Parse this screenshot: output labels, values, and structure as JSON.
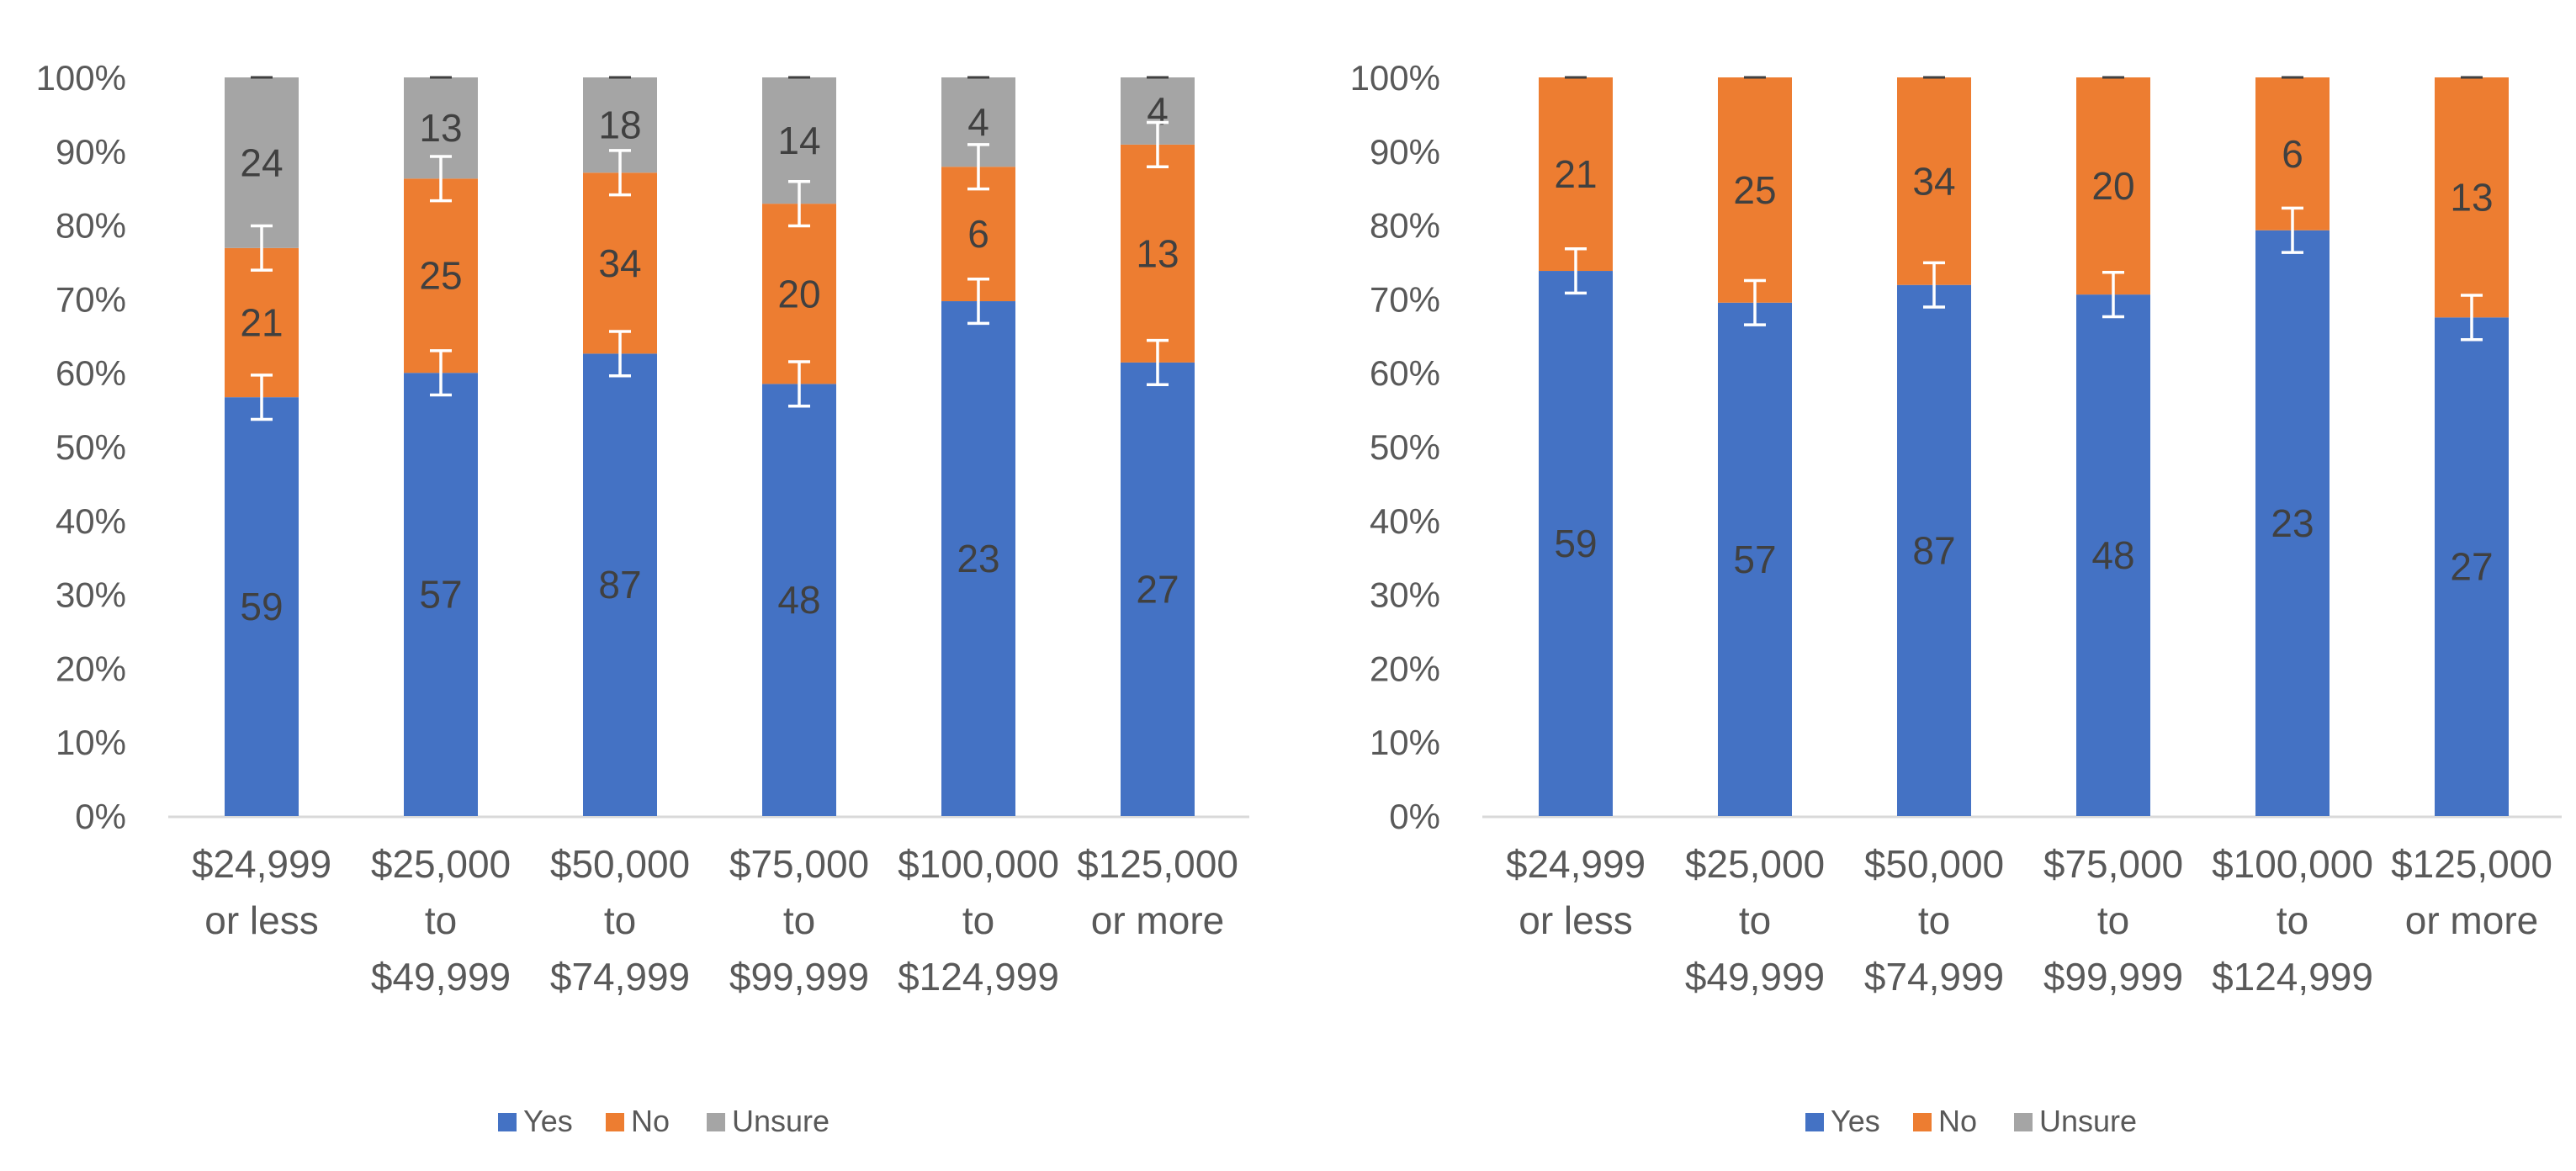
{
  "chart_data": [
    {
      "type": "bar",
      "stacked": "percent",
      "title": "",
      "xlabel": "",
      "ylabel": "",
      "ylim": [
        0,
        100
      ],
      "y_ticks": [
        "0%",
        "10%",
        "20%",
        "30%",
        "40%",
        "50%",
        "60%",
        "70%",
        "80%",
        "90%",
        "100%"
      ],
      "grid": false,
      "legend_position": "bottom",
      "categories": [
        [
          "$24,999",
          "or less"
        ],
        [
          "$25,000",
          "to",
          "$49,999"
        ],
        [
          "$50,000",
          "to",
          "$74,999"
        ],
        [
          "$75,000",
          "to",
          "$99,999"
        ],
        [
          "$100,000",
          "to",
          "$124,999"
        ],
        [
          "$125,000",
          "or more"
        ]
      ],
      "series": [
        {
          "name": "Yes",
          "color": "#4472C4",
          "counts": [
            "59",
            "57",
            "87",
            "48",
            "23",
            "27"
          ],
          "percent": [
            56.7,
            60.0,
            62.6,
            58.5,
            69.7,
            61.4
          ]
        },
        {
          "name": "No",
          "color": "#ED7D31",
          "counts": [
            "21",
            "25",
            "34",
            "20",
            "6",
            "13"
          ],
          "percent": [
            20.2,
            26.3,
            24.5,
            24.4,
            18.2,
            29.5
          ]
        },
        {
          "name": "Unsure",
          "color": "#A5A5A5",
          "counts": [
            "24",
            "13",
            "18",
            "14",
            "4",
            "4"
          ],
          "percent": [
            23.1,
            13.7,
            12.9,
            17.1,
            12.1,
            9.1
          ]
        }
      ]
    },
    {
      "type": "bar",
      "stacked": "percent",
      "title": "",
      "xlabel": "",
      "ylabel": "",
      "ylim": [
        0,
        100
      ],
      "y_ticks": [
        "0%",
        "10%",
        "20%",
        "30%",
        "40%",
        "50%",
        "60%",
        "70%",
        "80%",
        "90%",
        "100%"
      ],
      "grid": false,
      "legend_position": "bottom",
      "categories": [
        [
          "$24,999",
          "or less"
        ],
        [
          "$25,000",
          "to",
          "$49,999"
        ],
        [
          "$50,000",
          "to",
          "$74,999"
        ],
        [
          "$75,000",
          "to",
          "$99,999"
        ],
        [
          "$100,000",
          "to",
          "$124,999"
        ],
        [
          "$125,000",
          "or more"
        ]
      ],
      "series": [
        {
          "name": "Yes",
          "color": "#4472C4",
          "counts": [
            "59",
            "57",
            "87",
            "48",
            "23",
            "27"
          ],
          "percent": [
            73.8,
            69.5,
            71.9,
            70.6,
            79.3,
            67.5
          ]
        },
        {
          "name": "No",
          "color": "#ED7D31",
          "counts": [
            "21",
            "25",
            "34",
            "20",
            "6",
            "13"
          ],
          "percent": [
            26.2,
            30.5,
            28.1,
            29.4,
            20.7,
            32.5
          ]
        },
        {
          "name": "Unsure",
          "color": "#A5A5A5",
          "counts": [],
          "percent": [
            0,
            0,
            0,
            0,
            0,
            0
          ]
        }
      ]
    }
  ]
}
